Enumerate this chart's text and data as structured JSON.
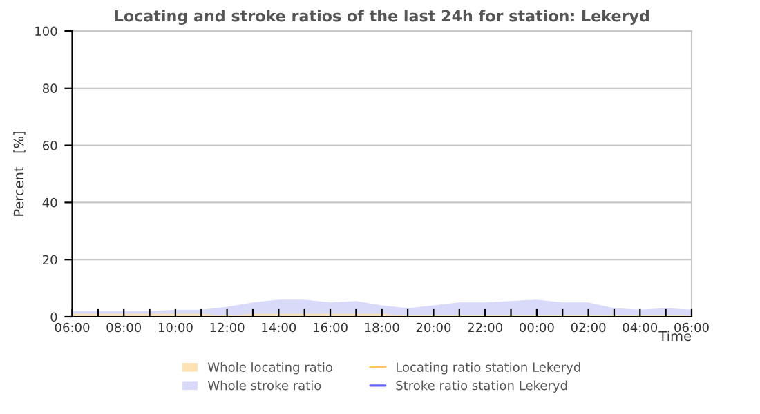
{
  "chart_data": {
    "type": "area",
    "title": "Locating and stroke ratios of the last 24h for station: Lekeryd",
    "xlabel": "Time",
    "ylabel": "Percent   [%]",
    "x": [
      "2000-01-01T06:00",
      "2000-01-01T07:00",
      "2000-01-01T08:00",
      "2000-01-01T09:00",
      "2000-01-01T10:00",
      "2000-01-01T11:00",
      "2000-01-01T12:00",
      "2000-01-01T13:00",
      "2000-01-01T14:00",
      "2000-01-01T15:00",
      "2000-01-01T16:00",
      "2000-01-01T17:00",
      "2000-01-01T18:00",
      "2000-01-01T19:00",
      "2000-01-01T20:00",
      "2000-01-01T21:00",
      "2000-01-01T22:00",
      "2000-01-01T23:00",
      "2000-01-02T00:00",
      "2000-01-02T01:00",
      "2000-01-02T02:00",
      "2000-01-02T03:00",
      "2000-01-02T04:00",
      "2000-01-02T05:00",
      "2000-01-02T06:00"
    ],
    "series": [
      {
        "name": "Whole locating ratio",
        "color": "#fde3b4",
        "values": [
          1,
          1,
          1,
          1,
          1,
          1,
          0.5,
          1,
          1,
          1,
          1,
          1,
          1,
          0.5,
          0.5,
          0.5,
          0.5,
          0.5,
          0.5,
          0.5,
          0.5,
          0.5,
          0.5,
          0.5,
          0.5
        ]
      },
      {
        "name": "Whole stroke ratio",
        "color": "#d9d9fa",
        "values": [
          2,
          2,
          2,
          2,
          2.5,
          2.5,
          3.5,
          5,
          6,
          6,
          5,
          5.5,
          4,
          3,
          4,
          5,
          5,
          5.5,
          6,
          5,
          5,
          3,
          2.5,
          3,
          2.5
        ]
      },
      {
        "name": "Locating ratio station Lekeryd",
        "type": "line",
        "color": "#ffc864",
        "values": [
          null,
          null,
          null,
          null,
          null,
          null,
          null,
          null,
          null,
          null,
          null,
          null,
          null,
          null,
          null,
          null,
          null,
          null,
          null,
          null,
          null,
          null,
          null,
          null,
          null
        ]
      },
      {
        "name": "Stroke ratio station Lekeryd",
        "type": "line",
        "color": "#6464ff",
        "values": [
          null,
          null,
          null,
          null,
          null,
          null,
          null,
          null,
          null,
          null,
          null,
          null,
          null,
          null,
          null,
          null,
          null,
          null,
          null,
          null,
          null,
          null,
          null,
          null,
          null
        ]
      }
    ],
    "xlim": [
      "2000-01-01T06:00",
      "2000-01-02T06:00"
    ],
    "xticks": [
      {
        "value": "2000-01-01T06:00",
        "label": "06:00"
      },
      {
        "value": "2000-01-01T07:00",
        "label": null
      },
      {
        "value": "2000-01-01T08:00",
        "label": "08:00"
      },
      {
        "value": "2000-01-01T09:00",
        "label": null
      },
      {
        "value": "2000-01-01T10:00",
        "label": "10:00"
      },
      {
        "value": "2000-01-01T11:00",
        "label": null
      },
      {
        "value": "2000-01-01T12:00",
        "label": "12:00"
      },
      {
        "value": "2000-01-01T13:00",
        "label": null
      },
      {
        "value": "2000-01-01T14:00",
        "label": "14:00"
      },
      {
        "value": "2000-01-01T15:00",
        "label": null
      },
      {
        "value": "2000-01-01T16:00",
        "label": "16:00"
      },
      {
        "value": "2000-01-01T17:00",
        "label": null
      },
      {
        "value": "2000-01-01T18:00",
        "label": "18:00"
      },
      {
        "value": "2000-01-01T19:00",
        "label": null
      },
      {
        "value": "2000-01-01T20:00",
        "label": "20:00"
      },
      {
        "value": "2000-01-01T21:00",
        "label": null
      },
      {
        "value": "2000-01-01T22:00",
        "label": "22:00"
      },
      {
        "value": "2000-01-01T23:00",
        "label": null
      },
      {
        "value": "2000-01-02T00:00",
        "label": "00:00"
      },
      {
        "value": "2000-01-02T01:00",
        "label": null
      },
      {
        "value": "2000-01-02T02:00",
        "label": "02:00"
      },
      {
        "value": "2000-01-02T03:00",
        "label": null
      },
      {
        "value": "2000-01-02T04:00",
        "label": "04:00"
      },
      {
        "value": "2000-01-02T05:00",
        "label": null
      },
      {
        "value": "2000-01-02T06:00",
        "label": "06:00"
      }
    ],
    "ylim": [
      0,
      100
    ],
    "yticks": [
      0,
      20,
      40,
      60,
      80,
      100
    ],
    "grid": "y",
    "legend": "bottom"
  }
}
